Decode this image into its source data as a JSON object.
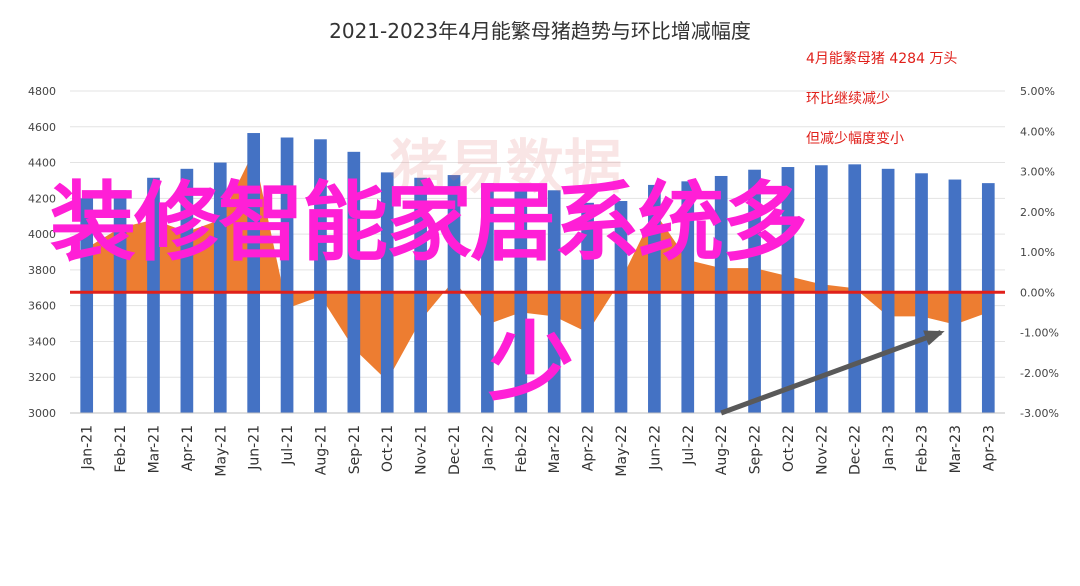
{
  "chart_data": {
    "type": "bar",
    "title": "2021-2023年4月能繁母猪趋势与环比增减幅度",
    "categories": [
      "Jan-21",
      "Feb-21",
      "Mar-21",
      "Apr-21",
      "May-21",
      "Jun-21",
      "Jul-21",
      "Aug-21",
      "Sep-21",
      "Oct-21",
      "Nov-21",
      "Dec-21",
      "Jan-22",
      "Feb-22",
      "Mar-22",
      "Apr-22",
      "May-22",
      "Jun-22",
      "Jul-22",
      "Aug-22",
      "Sep-22",
      "Oct-22",
      "Nov-22",
      "Dec-22",
      "Jan-23",
      "Feb-23",
      "Mar-23",
      "Apr-23"
    ],
    "left_axis": {
      "ylim": [
        3000,
        4800
      ],
      "ticks": [
        3000,
        3200,
        3400,
        3600,
        3800,
        4000,
        4200,
        4400,
        4600,
        4800
      ]
    },
    "right_axis": {
      "ylim": [
        -3.0,
        5.0
      ],
      "ticks": [
        "-3.00%",
        "-2.00%",
        "-1.00%",
        "0.00%",
        "1.00%",
        "2.00%",
        "3.00%",
        "4.00%",
        "5.00%"
      ]
    },
    "series": [
      {
        "type": "bar",
        "axis": "left",
        "color": "#4472c4",
        "values": [
          4200,
          4245,
          4315,
          4365,
          4400,
          4565,
          4540,
          4530,
          4460,
          4345,
          4315,
          4330,
          4285,
          4265,
          4245,
          4175,
          4185,
          4275,
          4295,
          4325,
          4360,
          4375,
          4385,
          4390,
          4365,
          4340,
          4305,
          4285
        ]
      },
      {
        "type": "area",
        "axis": "right",
        "color": "#ed7d31",
        "values": [
          1.1,
          1.6,
          1.8,
          1.5,
          1.8,
          3.5,
          -0.4,
          -0.1,
          -1.4,
          -2.2,
          -0.7,
          0.3,
          -0.8,
          -0.5,
          -0.6,
          -1.0,
          0.3,
          2.0,
          0.8,
          0.6,
          0.6,
          0.4,
          0.2,
          0.1,
          -0.6,
          -0.6,
          -0.8,
          -0.5
        ]
      }
    ],
    "reference_line": {
      "axis": "right",
      "value": 0,
      "color": "#e0201b"
    },
    "arrow": {
      "from": [
        "Aug-22",
        -3.0
      ],
      "to": [
        "Mar-23",
        -1.0
      ],
      "color": "#595959"
    },
    "annotations": [
      {
        "text": "4月能繁母猪 4284 万头",
        "color": "#e0201b"
      },
      {
        "text": "环比继续减少",
        "color": "#e0201b"
      },
      {
        "text": "但减少幅度变小",
        "color": "#e0201b"
      }
    ]
  },
  "overlay_text": {
    "line1": "装修智能家居系统多",
    "line2": "少",
    "color": "#ff1fd6"
  },
  "watermark": {
    "text": "猪易数据"
  }
}
